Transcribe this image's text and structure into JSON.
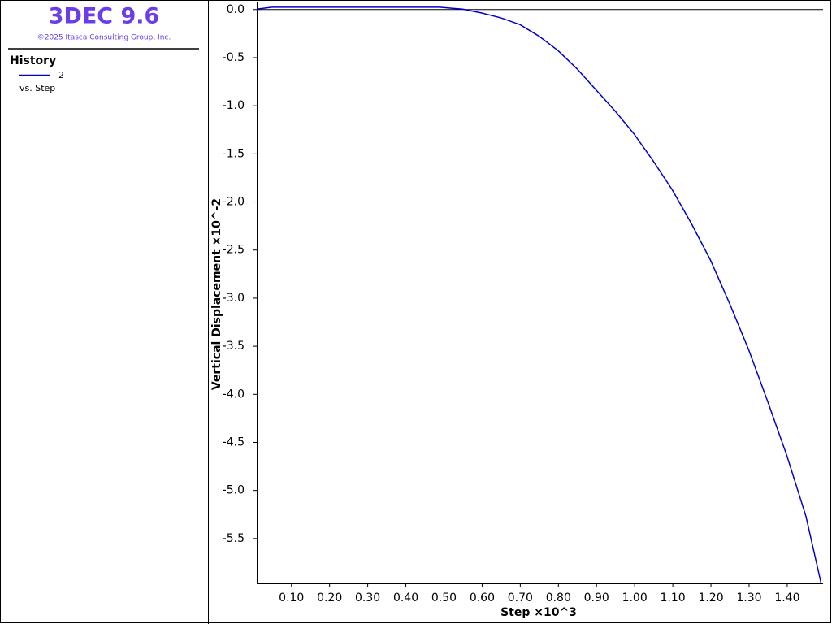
{
  "app": {
    "title": "3DEC 9.6",
    "copyright": "©2025 Itasca Consulting Group, Inc."
  },
  "panel": {
    "heading": "History",
    "x_note": "vs. Step"
  },
  "chart_data": {
    "type": "line",
    "x_label": "Step ×10^3",
    "y_label": "Vertical Displacement  ×10^-2",
    "x": [
      0.01,
      0.05,
      0.1,
      0.2,
      0.3,
      0.4,
      0.49,
      0.52,
      0.55,
      0.6,
      0.65,
      0.7,
      0.75,
      0.8,
      0.85,
      0.9,
      0.95,
      1.0,
      1.05,
      1.1,
      1.15,
      1.2,
      1.25,
      1.3,
      1.35,
      1.4,
      1.45,
      1.49
    ],
    "series": [
      {
        "name": "2",
        "color": "#0000cc",
        "values": [
          0,
          0.02,
          0.02,
          0.02,
          0.02,
          0.02,
          0.02,
          0.01,
          0,
          -0.04,
          -0.09,
          -0.16,
          -0.28,
          -0.43,
          -0.62,
          -0.84,
          -1.06,
          -1.3,
          -1.58,
          -1.88,
          -2.23,
          -2.61,
          -3.06,
          -3.54,
          -4.08,
          -4.64,
          -5.27,
          -5.97
        ]
      }
    ],
    "xlim": [
      0.01,
      1.495
    ],
    "ylim": [
      -5.97,
      0.07
    ],
    "xticks": [
      {
        "value": 0.1,
        "label": "0.10"
      },
      {
        "value": 0.2,
        "label": "0.20"
      },
      {
        "value": 0.3,
        "label": "0.30"
      },
      {
        "value": 0.4,
        "label": "0.40"
      },
      {
        "value": 0.5,
        "label": "0.50"
      },
      {
        "value": 0.6,
        "label": "0.60"
      },
      {
        "value": 0.7,
        "label": "0.70"
      },
      {
        "value": 0.8,
        "label": "0.80"
      },
      {
        "value": 0.9,
        "label": "0.90"
      },
      {
        "value": 1.0,
        "label": "1.00"
      },
      {
        "value": 1.1,
        "label": "1.10"
      },
      {
        "value": 1.2,
        "label": "1.20"
      },
      {
        "value": 1.3,
        "label": "1.30"
      },
      {
        "value": 1.4,
        "label": "1.40"
      }
    ],
    "yticks": [
      {
        "value": 0,
        "label": "0.0"
      },
      -0.5,
      {
        "value": -1,
        "label": "-1.0"
      },
      -1.5,
      {
        "value": -2,
        "label": "-2.0"
      },
      -2.5,
      {
        "value": -3,
        "label": "-3.0"
      },
      -3.5,
      {
        "value": -4,
        "label": "-4.0"
      },
      -4.5,
      {
        "value": -5,
        "label": "-5.0"
      },
      -5.5
    ],
    "zero_line": true
  }
}
